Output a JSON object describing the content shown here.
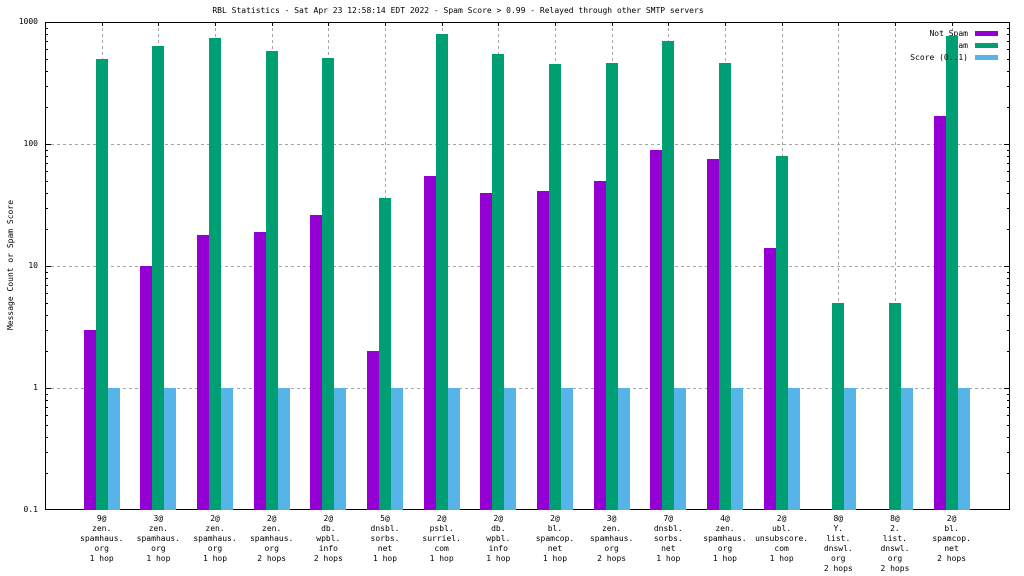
{
  "chart_data": {
    "type": "bar",
    "title": "RBL Statistics - Sat Apr 23 12:58:14 EDT 2022 - Spam Score > 0.99 - Relayed through other SMTP servers",
    "ylabel": "Message Count or Spam Score",
    "y_scale": "log",
    "ylim": [
      0.1,
      1000
    ],
    "y_tick_labels": [
      "0.1",
      "1",
      "10",
      "100",
      "1000"
    ],
    "y_tick_values": [
      0.1,
      1,
      10,
      100,
      1000
    ],
    "grid": true,
    "legend_position": "top-right-inside",
    "colors": {
      "not_spam": "#9400D3",
      "spam": "#009E73",
      "score": "#56B4E9",
      "grid": "#a6a6a6",
      "border": "#000000",
      "background": "#ffffff"
    },
    "categories": [
      {
        "lines": [
          "9@",
          "zen.",
          "spamhaus.",
          "org",
          "1 hop"
        ]
      },
      {
        "lines": [
          "3@",
          "zen.",
          "spamhaus.",
          "org",
          "1 hop"
        ]
      },
      {
        "lines": [
          "2@",
          "zen.",
          "spamhaus.",
          "org",
          "1 hop"
        ]
      },
      {
        "lines": [
          "2@",
          "zen.",
          "spamhaus.",
          "org",
          "2 hops"
        ]
      },
      {
        "lines": [
          "2@",
          "db.",
          "wpbl.",
          "info",
          "2 hops"
        ]
      },
      {
        "lines": [
          "5@",
          "dnsbl.",
          "sorbs.",
          "net",
          "1 hop"
        ]
      },
      {
        "lines": [
          "2@",
          "psbl.",
          "surriel.",
          "com",
          "1 hop"
        ]
      },
      {
        "lines": [
          "2@",
          "db.",
          "wpbl.",
          "info",
          "1 hop"
        ]
      },
      {
        "lines": [
          "2@",
          "bl.",
          "spamcop.",
          "net",
          "1 hop"
        ]
      },
      {
        "lines": [
          "3@",
          "zen.",
          "spamhaus.",
          "org",
          "2 hops"
        ]
      },
      {
        "lines": [
          "7@",
          "dnsbl.",
          "sorbs.",
          "net",
          "1 hop"
        ]
      },
      {
        "lines": [
          "4@",
          "zen.",
          "spamhaus.",
          "org",
          "1 hop"
        ]
      },
      {
        "lines": [
          "2@",
          "ubl.",
          "unsubscore.",
          "com",
          "1 hop"
        ]
      },
      {
        "lines": [
          "8@",
          "Y.",
          "list.",
          "dnswl.",
          "org",
          "2 hops"
        ]
      },
      {
        "lines": [
          "8@",
          "2.",
          "list.",
          "dnswl.",
          "org",
          "2 hops"
        ]
      },
      {
        "lines": [
          "2@",
          "bl.",
          "spamcop.",
          "net",
          "2 hops"
        ]
      }
    ],
    "series": [
      {
        "name": "Not Spam",
        "color_key": "not_spam",
        "values": [
          3,
          10,
          18,
          19,
          26,
          2,
          55,
          40,
          41,
          50,
          90,
          75,
          14,
          null,
          null,
          170
        ]
      },
      {
        "name": "Spam",
        "color_key": "spam",
        "values": [
          500,
          630,
          740,
          580,
          510,
          36,
          790,
          550,
          455,
          460,
          700,
          460,
          79,
          5,
          5,
          770
        ]
      },
      {
        "name": "Score (0..1)",
        "color_key": "score",
        "values": [
          1,
          1,
          1,
          1,
          1,
          1,
          1,
          1,
          1,
          1,
          1,
          1,
          1,
          1,
          1,
          1
        ]
      }
    ]
  }
}
